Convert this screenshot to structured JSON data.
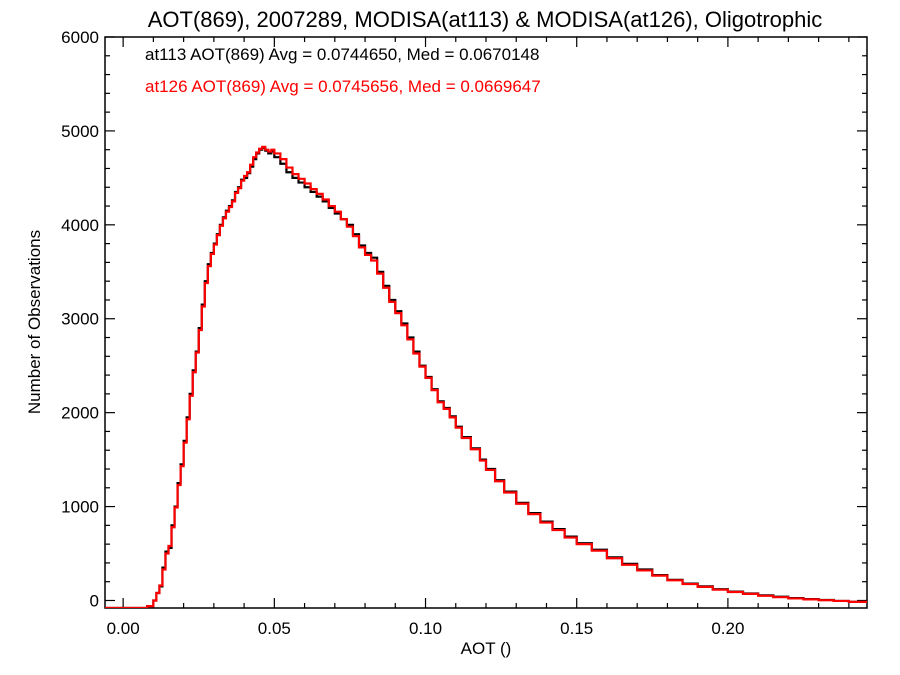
{
  "chart_data": {
    "type": "histogram",
    "title": "AOT(869), 2007289, MODISA(at113) & MODISA(at126), Oligotrophic",
    "xlabel": "AOT ()",
    "ylabel": "Number of Observations",
    "xlim": [
      -0.006,
      0.246
    ],
    "ylim": [
      -80,
      6000
    ],
    "xticks": [
      0.0,
      0.05,
      0.1,
      0.15,
      0.2
    ],
    "xtick_labels": [
      "0.00",
      "0.05",
      "0.10",
      "0.15",
      "0.20"
    ],
    "yticks": [
      0,
      1000,
      2000,
      3000,
      4000,
      5000,
      6000
    ],
    "ytick_labels": [
      "0",
      "1000",
      "2000",
      "3000",
      "4000",
      "5000",
      "6000"
    ],
    "grid": false,
    "legend": [
      {
        "text": "at113 AOT(869) Avg = 0.0744650, Med = 0.0670148",
        "color": "#000000"
      },
      {
        "text": "at126 AOT(869) Avg = 0.0745656, Med = 0.0669647",
        "color": "#ff0000"
      }
    ],
    "series": [
      {
        "color": "#000000",
        "points": [
          [
            -0.006,
            -80
          ],
          [
            0.005,
            -80
          ],
          [
            0.008,
            -60
          ],
          [
            0.01,
            0
          ],
          [
            0.011,
            80
          ],
          [
            0.012,
            150
          ],
          [
            0.013,
            350
          ],
          [
            0.014,
            520
          ],
          [
            0.015,
            560
          ],
          [
            0.016,
            800
          ],
          [
            0.017,
            1000
          ],
          [
            0.018,
            1250
          ],
          [
            0.019,
            1450
          ],
          [
            0.02,
            1700
          ],
          [
            0.021,
            1950
          ],
          [
            0.022,
            2200
          ],
          [
            0.023,
            2450
          ],
          [
            0.024,
            2650
          ],
          [
            0.025,
            2900
          ],
          [
            0.026,
            3150
          ],
          [
            0.027,
            3400
          ],
          [
            0.028,
            3580
          ],
          [
            0.029,
            3700
          ],
          [
            0.03,
            3800
          ],
          [
            0.031,
            3900
          ],
          [
            0.032,
            4000
          ],
          [
            0.033,
            4080
          ],
          [
            0.034,
            4150
          ],
          [
            0.035,
            4200
          ],
          [
            0.036,
            4260
          ],
          [
            0.037,
            4350
          ],
          [
            0.038,
            4400
          ],
          [
            0.039,
            4480
          ],
          [
            0.04,
            4500
          ],
          [
            0.041,
            4550
          ],
          [
            0.042,
            4620
          ],
          [
            0.043,
            4700
          ],
          [
            0.044,
            4760
          ],
          [
            0.045,
            4800
          ],
          [
            0.046,
            4820
          ],
          [
            0.047,
            4790
          ],
          [
            0.048,
            4760
          ],
          [
            0.049,
            4780
          ],
          [
            0.05,
            4720
          ],
          [
            0.052,
            4650
          ],
          [
            0.054,
            4560
          ],
          [
            0.056,
            4500
          ],
          [
            0.058,
            4450
          ],
          [
            0.06,
            4400
          ],
          [
            0.062,
            4350
          ],
          [
            0.064,
            4300
          ],
          [
            0.066,
            4250
          ],
          [
            0.068,
            4180
          ],
          [
            0.07,
            4120
          ],
          [
            0.072,
            4060
          ],
          [
            0.074,
            4000
          ],
          [
            0.076,
            3900
          ],
          [
            0.078,
            3780
          ],
          [
            0.08,
            3700
          ],
          [
            0.082,
            3650
          ],
          [
            0.084,
            3500
          ],
          [
            0.086,
            3350
          ],
          [
            0.088,
            3200
          ],
          [
            0.09,
            3080
          ],
          [
            0.092,
            2950
          ],
          [
            0.094,
            2800
          ],
          [
            0.096,
            2650
          ],
          [
            0.098,
            2500
          ],
          [
            0.1,
            2380
          ],
          [
            0.102,
            2250
          ],
          [
            0.104,
            2120
          ],
          [
            0.106,
            2050
          ],
          [
            0.108,
            1960
          ],
          [
            0.11,
            1850
          ],
          [
            0.112,
            1740
          ],
          [
            0.115,
            1620
          ],
          [
            0.118,
            1500
          ],
          [
            0.12,
            1400
          ],
          [
            0.123,
            1280
          ],
          [
            0.126,
            1160
          ],
          [
            0.13,
            1040
          ],
          [
            0.134,
            930
          ],
          [
            0.138,
            840
          ],
          [
            0.142,
            760
          ],
          [
            0.146,
            680
          ],
          [
            0.15,
            610
          ],
          [
            0.155,
            540
          ],
          [
            0.16,
            460
          ],
          [
            0.165,
            390
          ],
          [
            0.17,
            330
          ],
          [
            0.175,
            270
          ],
          [
            0.18,
            220
          ],
          [
            0.185,
            180
          ],
          [
            0.19,
            150
          ],
          [
            0.195,
            120
          ],
          [
            0.2,
            95
          ],
          [
            0.205,
            75
          ],
          [
            0.21,
            55
          ],
          [
            0.215,
            40
          ],
          [
            0.22,
            25
          ],
          [
            0.225,
            15
          ],
          [
            0.23,
            5
          ],
          [
            0.235,
            -5
          ],
          [
            0.24,
            -15
          ],
          [
            0.246,
            -25
          ]
        ]
      },
      {
        "color": "#ff0000",
        "points": [
          [
            -0.006,
            -80
          ],
          [
            0.005,
            -80
          ],
          [
            0.008,
            -60
          ],
          [
            0.01,
            0
          ],
          [
            0.011,
            80
          ],
          [
            0.012,
            160
          ],
          [
            0.013,
            330
          ],
          [
            0.014,
            500
          ],
          [
            0.015,
            580
          ],
          [
            0.016,
            780
          ],
          [
            0.017,
            990
          ],
          [
            0.018,
            1230
          ],
          [
            0.019,
            1430
          ],
          [
            0.02,
            1680
          ],
          [
            0.021,
            1930
          ],
          [
            0.022,
            2180
          ],
          [
            0.023,
            2430
          ],
          [
            0.024,
            2640
          ],
          [
            0.025,
            2880
          ],
          [
            0.026,
            3130
          ],
          [
            0.027,
            3380
          ],
          [
            0.028,
            3560
          ],
          [
            0.029,
            3690
          ],
          [
            0.03,
            3790
          ],
          [
            0.031,
            3890
          ],
          [
            0.032,
            3990
          ],
          [
            0.033,
            4070
          ],
          [
            0.034,
            4140
          ],
          [
            0.035,
            4190
          ],
          [
            0.036,
            4250
          ],
          [
            0.037,
            4340
          ],
          [
            0.038,
            4390
          ],
          [
            0.039,
            4470
          ],
          [
            0.04,
            4520
          ],
          [
            0.041,
            4560
          ],
          [
            0.042,
            4640
          ],
          [
            0.043,
            4720
          ],
          [
            0.044,
            4770
          ],
          [
            0.045,
            4810
          ],
          [
            0.046,
            4830
          ],
          [
            0.047,
            4800
          ],
          [
            0.048,
            4780
          ],
          [
            0.049,
            4800
          ],
          [
            0.05,
            4760
          ],
          [
            0.052,
            4700
          ],
          [
            0.054,
            4610
          ],
          [
            0.056,
            4540
          ],
          [
            0.058,
            4490
          ],
          [
            0.06,
            4440
          ],
          [
            0.062,
            4380
          ],
          [
            0.064,
            4330
          ],
          [
            0.066,
            4270
          ],
          [
            0.068,
            4200
          ],
          [
            0.07,
            4140
          ],
          [
            0.072,
            4060
          ],
          [
            0.074,
            3980
          ],
          [
            0.076,
            3880
          ],
          [
            0.078,
            3760
          ],
          [
            0.08,
            3680
          ],
          [
            0.082,
            3620
          ],
          [
            0.084,
            3480
          ],
          [
            0.086,
            3330
          ],
          [
            0.088,
            3180
          ],
          [
            0.09,
            3060
          ],
          [
            0.092,
            2930
          ],
          [
            0.094,
            2780
          ],
          [
            0.096,
            2630
          ],
          [
            0.098,
            2490
          ],
          [
            0.1,
            2370
          ],
          [
            0.102,
            2240
          ],
          [
            0.104,
            2110
          ],
          [
            0.106,
            2040
          ],
          [
            0.108,
            1950
          ],
          [
            0.11,
            1840
          ],
          [
            0.112,
            1730
          ],
          [
            0.115,
            1610
          ],
          [
            0.118,
            1490
          ],
          [
            0.12,
            1390
          ],
          [
            0.123,
            1270
          ],
          [
            0.126,
            1150
          ],
          [
            0.13,
            1030
          ],
          [
            0.134,
            920
          ],
          [
            0.138,
            830
          ],
          [
            0.142,
            750
          ],
          [
            0.146,
            670
          ],
          [
            0.15,
            600
          ],
          [
            0.155,
            530
          ],
          [
            0.16,
            450
          ],
          [
            0.165,
            380
          ],
          [
            0.17,
            320
          ],
          [
            0.175,
            265
          ],
          [
            0.18,
            215
          ],
          [
            0.185,
            175
          ],
          [
            0.19,
            145
          ],
          [
            0.195,
            115
          ],
          [
            0.2,
            90
          ],
          [
            0.205,
            70
          ],
          [
            0.21,
            50
          ],
          [
            0.215,
            35
          ],
          [
            0.22,
            22
          ],
          [
            0.225,
            12
          ],
          [
            0.23,
            3
          ],
          [
            0.235,
            -5
          ],
          [
            0.24,
            -15
          ],
          [
            0.246,
            -25
          ]
        ]
      }
    ]
  }
}
